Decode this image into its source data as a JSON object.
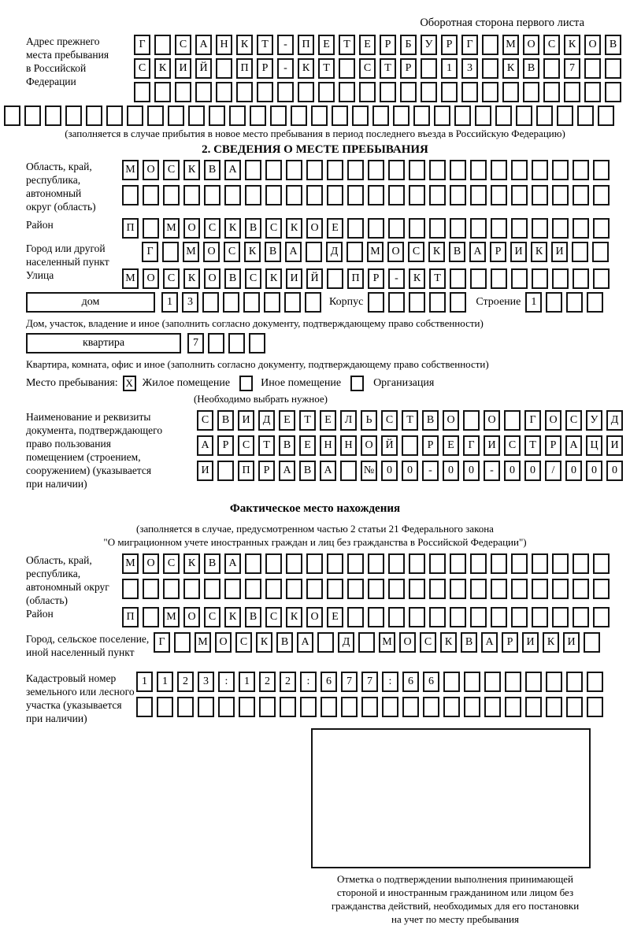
{
  "header_note": "Оборотная сторона первого листа",
  "prev_address": {
    "label": "Адрес прежнего\nместа пребывания\nв Российской\nФедерации",
    "row1": {
      "len": 24,
      "text": "Г САНКТ-ПЕТЕРБУРГ МОСКОВ"
    },
    "row2": {
      "len": 24,
      "text": "СКИЙ ПР-КТ СТР 13 КВ 7"
    },
    "row3": {
      "len": 24,
      "text": ""
    },
    "row4": {
      "len": 30,
      "text": ""
    },
    "note": "(заполняется в случае прибытия в новое место пребывания в период последнего въезда в Российскую Федерацию)"
  },
  "section2": {
    "title": "2. СВЕДЕНИЯ О МЕСТЕ ПРЕБЫВАНИЯ",
    "oblast": {
      "label": "Область, край,\nреспублика,\nавтономный\nокруг (область)",
      "row1": {
        "len": 24,
        "text": "МОСКВА"
      },
      "row2": {
        "len": 24,
        "text": ""
      }
    },
    "raion": {
      "label": "Район",
      "row": {
        "len": 24,
        "text": "П МОСКВСКОЕ"
      }
    },
    "gorod": {
      "label": "Город или другой\nнаселенный пункт",
      "row": {
        "len": 23,
        "text": "Г МОСКВА Д МОСКВАРИКИ"
      }
    },
    "ulitsa": {
      "label": "Улица",
      "row": {
        "len": 24,
        "text": "МОСКОВСКИЙ ПР-КТ"
      }
    },
    "dom": {
      "label": "дом",
      "house": {
        "len": 8,
        "text": "13"
      },
      "korpus_label": "Корпус",
      "korpus": {
        "len": 5,
        "text": ""
      },
      "stroenie_label": "Строение",
      "stroenie": {
        "len": 4,
        "text": "1"
      }
    },
    "dom_caption": "Дом, участок, владение и иное (заполнить согласно документу, подтверждающему право собственности)",
    "kvartira": {
      "label": "квартира",
      "row": {
        "len": 4,
        "text": "7"
      }
    },
    "kvartira_caption": "Квартира, комната, офис и иное (заполнить согласно документу, подтверждающему право собственности)",
    "mesto": {
      "label": "Место пребывания:",
      "options": [
        {
          "label": "Жилое помещение",
          "mark": "X"
        },
        {
          "label": "Иное помещение",
          "mark": ""
        },
        {
          "label": "Организация",
          "mark": ""
        }
      ],
      "note": "(Необходимо выбрать нужное)"
    },
    "doc": {
      "label": "Наименование и реквизиты\nдокумента, подтверждающего\nправо пользования\nпомещением (строением,\nсооружением) (указывается\nпри наличии)",
      "row1": {
        "len": 21,
        "text": "СВИДЕТЕЛЬСТВО О ГОСУД"
      },
      "row2": {
        "len": 21,
        "text": "АРСТВЕННОЙ РЕГИСТРАЦИ"
      },
      "row3": {
        "len": 21,
        "text": "И ПРАВА №00-00-00/000"
      }
    }
  },
  "factual": {
    "title": "Фактическое место нахождения",
    "note_line1": "(заполняется в случае, предусмотренном частью 2 статьи 21 Федерального закона",
    "note_line2": "\"О миграционном учете иностранных граждан и лиц без гражданства в Российской Федерации\")",
    "oblast": {
      "label": "Область, край,\nреспублика,\nавтономный округ\n(область)",
      "row1": {
        "len": 24,
        "text": "МОСКВА"
      },
      "row2": {
        "len": 24,
        "text": ""
      }
    },
    "raion": {
      "label": "Район",
      "row": {
        "len": 24,
        "text": "П МОСКВСКОЕ"
      }
    },
    "gorod": {
      "label": "Город, сельское поселение,\nиной населенный пункт",
      "row": {
        "len": 22,
        "text": "Г МОСКВА Д МОСКВАРИКИ"
      }
    },
    "kadastr": {
      "label": "Кадастровый номер\nземельного или лесного\nучастка (указывается\nпри наличии)",
      "row1": {
        "len": 23,
        "text": "1123:122:677:66"
      },
      "row2": {
        "len": 23,
        "text": ""
      }
    }
  },
  "footer": {
    "caption": "Отметка о подтверждении выполнения принимающей\nстороной и иностранным гражданином или лицом без\nгражданства действий, необходимых для его постановки\nна учет по месту пребывания"
  }
}
